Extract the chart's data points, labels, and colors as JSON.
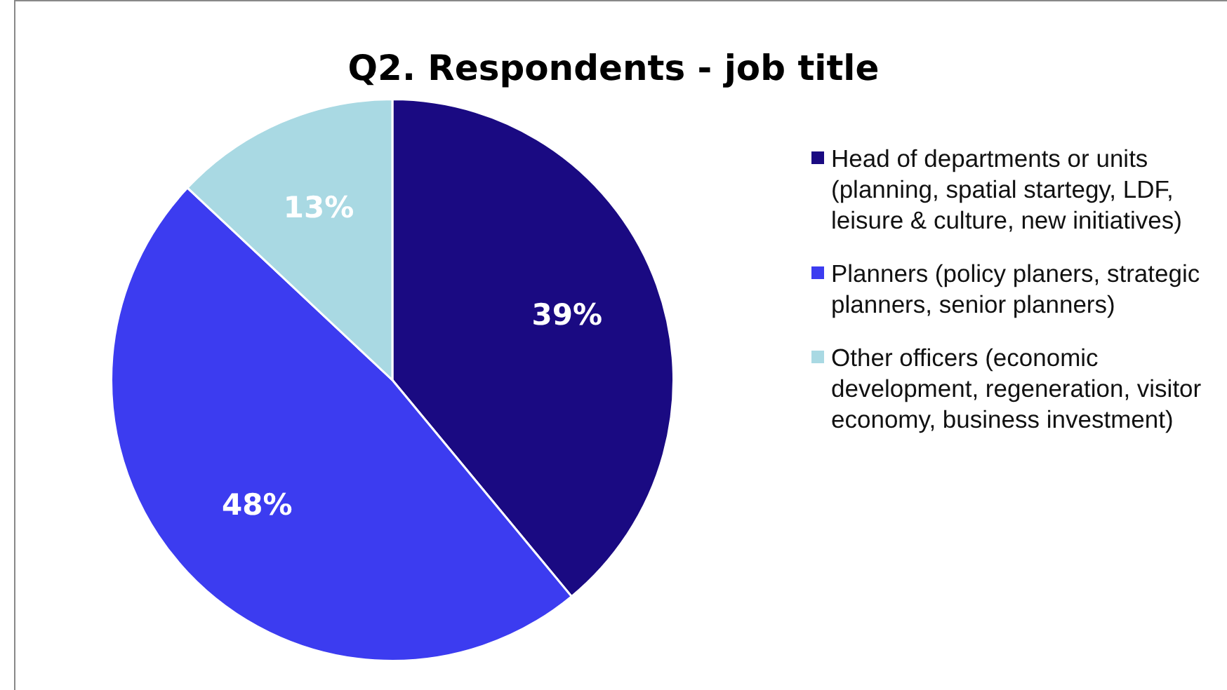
{
  "chart_data": {
    "type": "pie",
    "title": "Q2. Respondents - job title",
    "categories": [
      "Head of departments or units (planning, spatial startegy, LDF, leisure & culture, new initiatives)",
      "Planners (policy planers, strategic planners, senior planners)",
      "Other officers (economic development, regeneration, visitor economy, business investment)"
    ],
    "values": [
      39,
      48,
      13
    ],
    "colors": [
      "#1a0a82",
      "#3c3cf0",
      "#a9d9e3"
    ],
    "value_labels": [
      "39%",
      "48%",
      "13%"
    ],
    "legend": "right"
  }
}
